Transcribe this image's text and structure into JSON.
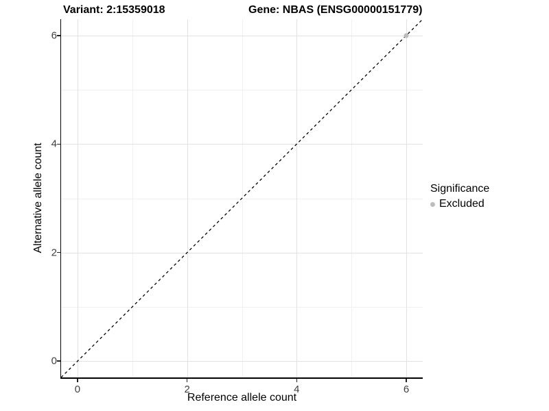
{
  "chart_data": {
    "type": "scatter",
    "title_left": "Variant: 2:15359018",
    "title_right": "Gene: NBAS (ENSG00000151779)",
    "xlabel": "Reference allele count",
    "ylabel": "Alternative allele count",
    "xlim": [
      -0.3,
      6.3
    ],
    "ylim": [
      -0.3,
      6.3
    ],
    "x_ticks": [
      0,
      2,
      4,
      6
    ],
    "y_ticks": [
      0,
      2,
      4,
      6
    ],
    "x_minor_ticks": [
      1,
      3,
      5
    ],
    "y_minor_ticks": [
      1,
      3,
      5
    ],
    "grid": "major and minor, light gray on white",
    "reference_line": {
      "slope": 1,
      "intercept": 0,
      "style": "dashed",
      "color": "#000000"
    },
    "series": [
      {
        "name": "Excluded",
        "color": "#bdbdbd",
        "points": [
          {
            "x": 6,
            "y": 6
          }
        ]
      }
    ],
    "legend": {
      "title": "Significance",
      "position": "right-center",
      "items": [
        {
          "label": "Excluded",
          "color": "#bdbdbd"
        }
      ]
    },
    "colors": {
      "grid_major": "#e2e2e2",
      "grid_minor": "#f0f0f0",
      "axis_line": "#000000",
      "tick_text": "#404040",
      "point": "#bdbdbd"
    }
  }
}
